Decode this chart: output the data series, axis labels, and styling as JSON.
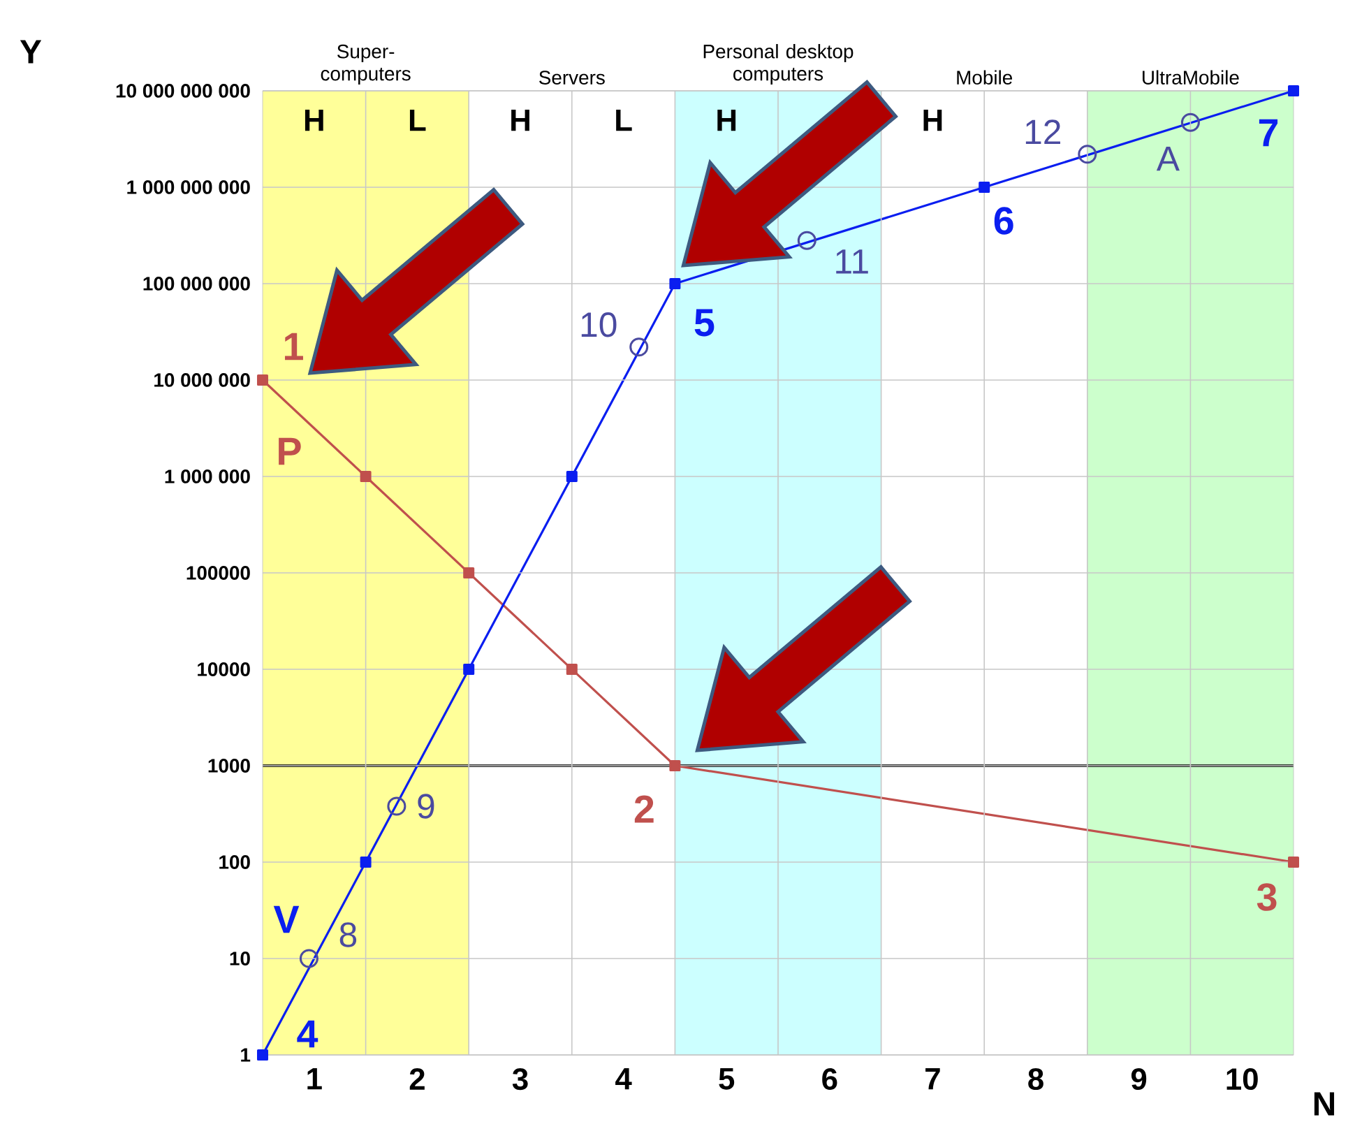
{
  "chart_data": {
    "type": "line",
    "xlabel": "N",
    "ylabel": "Y",
    "log": "y",
    "grid": true,
    "line_style": "solid",
    "marker": "square",
    "xlim": [
      0,
      10
    ],
    "xticks": [
      {
        "value": 1,
        "label": null
      },
      {
        "value": 2,
        "label": null
      },
      {
        "value": 3,
        "label": null
      },
      {
        "value": 4,
        "label": null
      },
      {
        "value": 5,
        "label": null
      },
      {
        "value": 6,
        "label": null
      },
      {
        "value": 7,
        "label": null
      },
      {
        "value": 8,
        "label": null
      },
      {
        "value": 9,
        "label": null
      },
      {
        "value": 0.5,
        "label": "1"
      },
      {
        "value": 1.5,
        "label": "2"
      },
      {
        "value": 2.5,
        "label": "3"
      },
      {
        "value": 3.5,
        "label": "4"
      },
      {
        "value": 4.5,
        "label": "5"
      },
      {
        "value": 5.5,
        "label": "6"
      },
      {
        "value": 6.5,
        "label": "7"
      },
      {
        "value": 7.5,
        "label": "8"
      },
      {
        "value": 8.5,
        "label": "9"
      },
      {
        "value": 9.5,
        "label": "10"
      }
    ],
    "ylim": [
      1,
      10000000000
    ],
    "yticks": [
      1,
      10,
      100,
      1000,
      10000,
      100000,
      {
        "value": 1000000,
        "label": "1 000 000"
      },
      {
        "value": 10000000,
        "label": "10 000 000"
      },
      {
        "value": 100000000,
        "label": "100 000 000"
      },
      {
        "value": 1000000000,
        "label": "1 000 000 000"
      },
      {
        "value": 10000000000,
        "label": "10 000 000 000"
      }
    ],
    "annotations": [
      {
        "text": "1",
        "x": 0,
        "y": 10000000
      },
      {
        "text": "2",
        "x": 4,
        "y": 1000
      },
      {
        "text": "3",
        "x": 10,
        "y": 100
      },
      {
        "text": "4",
        "x": 0,
        "y": 1
      },
      {
        "text": "5",
        "x": 4,
        "y": 100000000
      },
      {
        "text": "6",
        "x": 7,
        "y": 1000000000
      },
      {
        "text": "7",
        "x": 10,
        "y": 10000000000
      },
      {
        "text": "8",
        "x": 0.45,
        "y": 10
      },
      {
        "text": "9",
        "x": 1.3,
        "y": 380
      },
      {
        "text": "10",
        "x": 3.65,
        "y": 22000000
      },
      {
        "text": "11",
        "x": 5.28,
        "y": 280000000
      },
      {
        "text": "12",
        "x": 8,
        "y": 2200000000
      },
      {
        "text": "A",
        "x": 9,
        "y": 4700000000
      },
      "Servers",
      "Mobile",
      "H",
      "L",
      "H",
      "L",
      "H",
      "H"
    ],
    "series": [
      {
        "name": "P",
        "color": "#c0504d",
        "x": [
          0,
          1,
          2,
          3,
          4,
          10
        ],
        "values": [
          10000000,
          1000000,
          100000,
          10000,
          1000,
          100
        ]
      },
      {
        "name": "V",
        "color": "#0a1ef0",
        "x": [
          0,
          1,
          2,
          3,
          4,
          7,
          10
        ],
        "values": [
          1,
          100,
          10000,
          1000000,
          100000000,
          1000000000,
          10000000000
        ]
      },
      {
        "type": "scatter",
        "marker": "circle",
        "color": "#4a4aa0",
        "x": [
          0.45,
          1.3,
          3.65,
          5.28,
          8,
          9
        ],
        "values": [
          10,
          380,
          22000000,
          280000000,
          2200000000,
          4700000000
        ]
      }
    ],
    "ref_lines": [
      {
        "axis": "y",
        "value": 1000,
        "color": "#000000"
      }
    ],
    "bands": [
      {
        "axis": "x",
        "from": 0,
        "to": 2,
        "label": "Super-computers",
        "color": "#ffff99"
      },
      {
        "axis": "x",
        "from": 4,
        "to": 6,
        "label": "Personal desktop computers",
        "color": "#ccffff"
      },
      {
        "axis": "x",
        "from": 8,
        "to": 10,
        "label": "UltraMobile",
        "color": "#ccffcc"
      }
    ]
  }
}
